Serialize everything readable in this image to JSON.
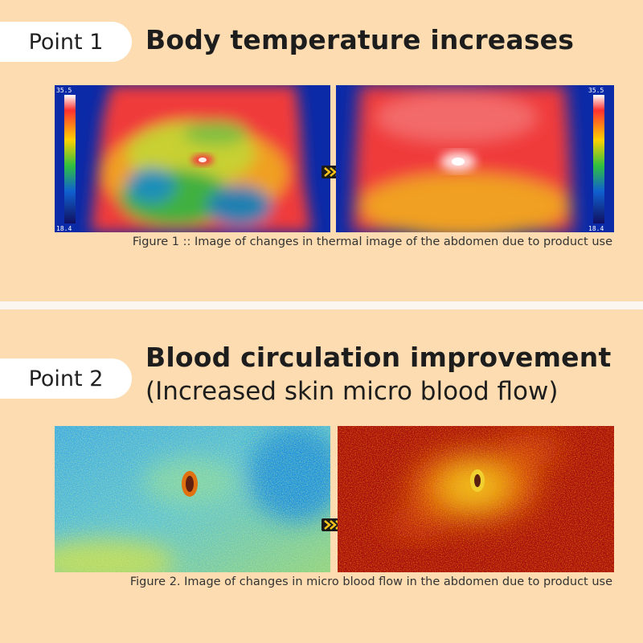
{
  "point1": {
    "label": "Point 1",
    "title": "Body temperature increases",
    "scale_max": "35.5",
    "scale_min": "18.4",
    "caption": "Figure 1 :: Image of changes in thermal image of the abdomen due to product use"
  },
  "point2": {
    "label": "Point 2",
    "title": "Blood circulation improvement",
    "subtitle": "(Increased skin micro blood flow)",
    "caption": "Figure 2. Image of changes in micro blood flow in the abdomen due to product use"
  },
  "colors": {
    "panel": "#fcdcb0",
    "separator": "#fbf6ef",
    "arrow": "#f6c21c"
  }
}
